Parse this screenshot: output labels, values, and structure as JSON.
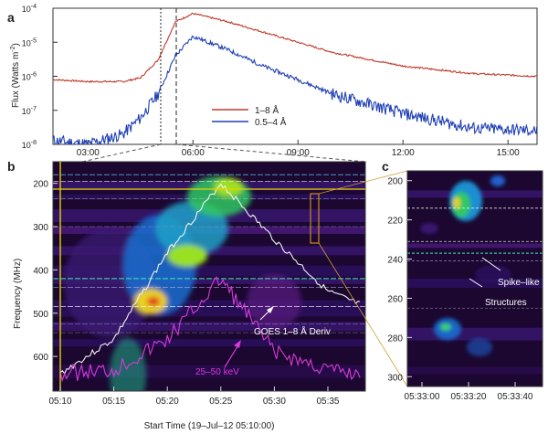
{
  "panels": {
    "a": {
      "letter": "a",
      "ylabel": "Flux (Watts m",
      "ylabel_sup": "-2",
      "ylabel_close": ")",
      "yticks": [
        "10",
        "10",
        "10",
        "10",
        "10"
      ],
      "yexps": [
        "-4",
        "-5",
        "-6",
        "-7",
        "-8"
      ],
      "xticks": [
        "03:00",
        "06:00",
        "09:00",
        "12:00",
        "15:00"
      ],
      "legend": [
        {
          "label": "1–8 Å",
          "color": "#c0392b"
        },
        {
          "label": "0.5–4 Å",
          "color": "#1f3fb5"
        }
      ]
    },
    "b": {
      "letter": "b",
      "ylabel": "Frequency (MHz)",
      "yticks": [
        "200",
        "300",
        "400",
        "500",
        "600"
      ],
      "xticks": [
        "05:10",
        "05:15",
        "05:20",
        "05:25",
        "05:30",
        "05:35"
      ],
      "xlabel": "Start Time (19–Jul–12 05:10:00)",
      "annotation_goes": "GOES 1–8 Å Deriv",
      "annotation_hxr": "25–50 keV"
    },
    "c": {
      "letter": "c",
      "yticks": [
        "200",
        "220",
        "240",
        "260",
        "280",
        "300"
      ],
      "xticks": [
        "05:33:00",
        "05:33:20",
        "05:33:40"
      ],
      "annotation_line1": "Spike–like",
      "annotation_line2": "Structures"
    }
  },
  "colors": {
    "goes_long": "#c0392b",
    "goes_short": "#1f3fb5",
    "goes_deriv": "#f2f2f2",
    "hxr": "#d63bd6",
    "cursor": "#e8d200",
    "spectrogram_bg": "#1b0730"
  },
  "chart_data": [
    {
      "type": "line",
      "title": "",
      "xlabel": "",
      "ylabel": "Flux (Watts m-2)",
      "yscale": "log",
      "ylim": [
        1e-08,
        0.0001
      ],
      "x": [
        "02:00",
        "03:00",
        "04:00",
        "04:30",
        "05:00",
        "05:30",
        "06:00",
        "07:00",
        "08:00",
        "09:00",
        "10:00",
        "12:00",
        "14:00",
        "15:50"
      ],
      "series": [
        {
          "name": "1–8 Å",
          "values": [
            8e-07,
            7e-07,
            7e-07,
            9e-07,
            3e-06,
            4e-05,
            7e-05,
            4e-05,
            2e-05,
            1e-05,
            5e-06,
            2e-06,
            1.2e-06,
            1e-06
          ]
        },
        {
          "name": "0.5–4 Å",
          "values": [
            1.3e-08,
            1e-08,
            2e-08,
            6e-08,
            3e-07,
            4e-06,
            1.5e-05,
            6e-06,
            2e-06,
            8e-07,
            3e-07,
            8e-08,
            3e-08,
            2.5e-08
          ]
        }
      ]
    },
    {
      "type": "heatmap",
      "title": "",
      "xlabel": "Start Time (19–Jul–12 05:10:00)",
      "ylabel": "Frequency (MHz)",
      "x": [
        "05:10",
        "05:15",
        "05:20",
        "05:25",
        "05:30",
        "05:35"
      ],
      "ylim": [
        150,
        680
      ],
      "series": [
        {
          "name": "GOES 1–8 Å Deriv",
          "x": [
            5.1,
            5.15,
            5.2,
            5.25,
            5.3,
            5.35,
            5.38
          ],
          "values": [
            640,
            560,
            360,
            200,
            330,
            450,
            480
          ]
        },
        {
          "name": "25–50 keV",
          "x": [
            5.1,
            5.15,
            5.2,
            5.25,
            5.3,
            5.35,
            5.38
          ],
          "values": [
            640,
            630,
            560,
            420,
            590,
            630,
            640
          ]
        }
      ]
    },
    {
      "type": "heatmap",
      "title": "",
      "xlabel": "",
      "ylabel": "",
      "x": [
        "05:33:00",
        "05:33:20",
        "05:33:40"
      ],
      "ylim": [
        195,
        305
      ]
    }
  ]
}
